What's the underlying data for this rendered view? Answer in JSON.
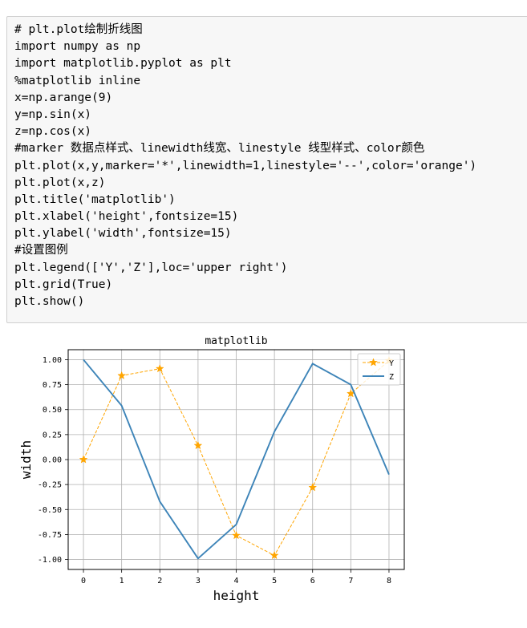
{
  "code_cell": {
    "lines": [
      "# plt.plot绘制折线图",
      "import numpy as np",
      "import matplotlib.pyplot as plt",
      "%matplotlib inline",
      "x=np.arange(9)",
      "y=np.sin(x)",
      "z=np.cos(x)",
      "#marker 数据点样式、linewidth线宽、linestyle 线型样式、color颜色",
      "plt.plot(x,y,marker='*',linewidth=1,linestyle='--',color='orange')",
      "plt.plot(x,z)",
      "plt.title('matplotlib')",
      "plt.xlabel('height',fontsize=15)",
      "plt.ylabel('width',fontsize=15)",
      "#设置图例",
      "plt.legend(['Y','Z'],loc='upper right')",
      "plt.grid(True)",
      "plt.show()"
    ]
  },
  "chart_data": {
    "type": "line",
    "title": "matplotlib",
    "xlabel": "height",
    "ylabel": "width",
    "x": [
      0,
      1,
      2,
      3,
      4,
      5,
      6,
      7,
      8
    ],
    "xlim": [
      -0.4,
      8.4
    ],
    "ylim": [
      -1.1,
      1.1
    ],
    "xticks": [
      "0",
      "1",
      "2",
      "3",
      "4",
      "5",
      "6",
      "7",
      "8"
    ],
    "yticks": [
      "1.00",
      "0.75",
      "0.50",
      "0.25",
      "0.00",
      "-0.25",
      "-0.50",
      "-0.75",
      "-1.00"
    ],
    "ytick_values": [
      1.0,
      0.75,
      0.5,
      0.25,
      0.0,
      -0.25,
      -0.5,
      -0.75,
      -1.0
    ],
    "grid": true,
    "legend_position": "upper right",
    "series": [
      {
        "name": "Y",
        "color": "#ffa500",
        "style": "dashed",
        "marker": "star",
        "values": [
          0.0,
          0.84,
          0.91,
          0.14,
          -0.76,
          -0.96,
          -0.28,
          0.66,
          0.99
        ]
      },
      {
        "name": "Z",
        "color": "#3d84b8",
        "style": "solid",
        "marker": "none",
        "values": [
          1.0,
          0.54,
          -0.42,
          -0.99,
          -0.65,
          0.28,
          0.96,
          0.75,
          -0.15
        ]
      }
    ]
  }
}
